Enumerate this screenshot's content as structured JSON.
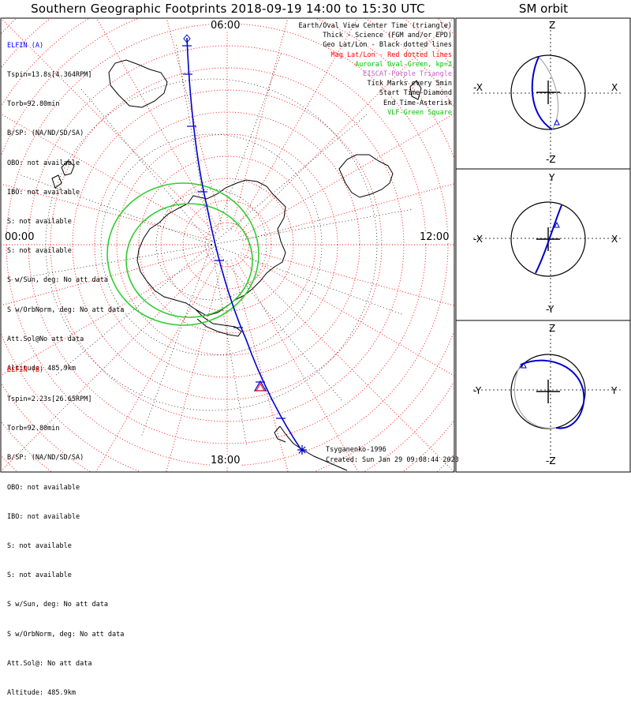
{
  "title": "Southern Geographic Footprints 2018-09-19 14:00 to 15:30 UTC",
  "sm_title": "SM orbit",
  "probe_a": {
    "name": "ELFIN (A)",
    "color": "#0000ff",
    "lines": [
      "Tspin=13.8s[4.364RPM]",
      "Torb=92.80min",
      "B/SP: (NA/ND/SD/SA)",
      "OBO: not available",
      "IBO: not available",
      "S: not available",
      "S: not available",
      "S w/Sun, deg: No att data",
      "S w/OrbNorm, deg: No att data",
      "Att.Sol@No att data",
      "Altitude: 485.9km"
    ]
  },
  "probe_b": {
    "name": "ELFIN (B)",
    "color": "#ff0000",
    "lines": [
      "Tspin=2.23s[26.65RPM]",
      "Torb=92.80min",
      "B/SP: (NA/ND/SD/SA)",
      "OBO: not available",
      "IBO: not available",
      "S: not available",
      "S: not available",
      "S w/Sun, deg: No att data",
      "S w/OrbNorm, deg: No att data",
      "Att.Sol@: No att data",
      "Altitude: 485.9km"
    ]
  },
  "legend": [
    {
      "text": "Earth/Oval View Center Time (triangle)",
      "color": "#000000"
    },
    {
      "text": "Thick - Science (FGM and/or EPD)",
      "color": "#000000"
    },
    {
      "text": "Geo Lat/Lon - Black dotted lines",
      "color": "#000000"
    },
    {
      "text": "Mag Lat/Lon - Red dotted lines",
      "color": "#ff0000"
    },
    {
      "text": "Auroral Oval-Green, kp=2",
      "color": "#00c000"
    },
    {
      "text": "EISCAT-Purple Triangle",
      "color": "#c060c0"
    },
    {
      "text": "Tick Marks every 5min",
      "color": "#000000"
    },
    {
      "text": "Start Time-Diamond",
      "color": "#000000"
    },
    {
      "text": "End Time-Asterisk",
      "color": "#000000"
    },
    {
      "text": "VLF-Green Square",
      "color": "#00c000"
    }
  ],
  "footer": {
    "model": "Tsyganenko-1996",
    "created": "Created: Sun Jan 29 09:08:44 2023"
  },
  "mlt_labels": {
    "top": "06:00",
    "left": "00:00",
    "right": "12:00",
    "bottom": "18:00"
  },
  "sm_panels": [
    {
      "top": "Z",
      "bottom": "-Z",
      "left": "-X",
      "right": "X"
    },
    {
      "top": "Y",
      "bottom": "-Y",
      "left": "-X",
      "right": "X"
    },
    {
      "top": "Z",
      "bottom": "-Z",
      "left": "-Y",
      "right": "Y"
    }
  ],
  "colors": {
    "track": "#0000cc",
    "oval": "#33cc33",
    "mag_grid": "#ff0000",
    "geo_grid": "#000000",
    "shadow_orbit": "#aaaaaa"
  }
}
